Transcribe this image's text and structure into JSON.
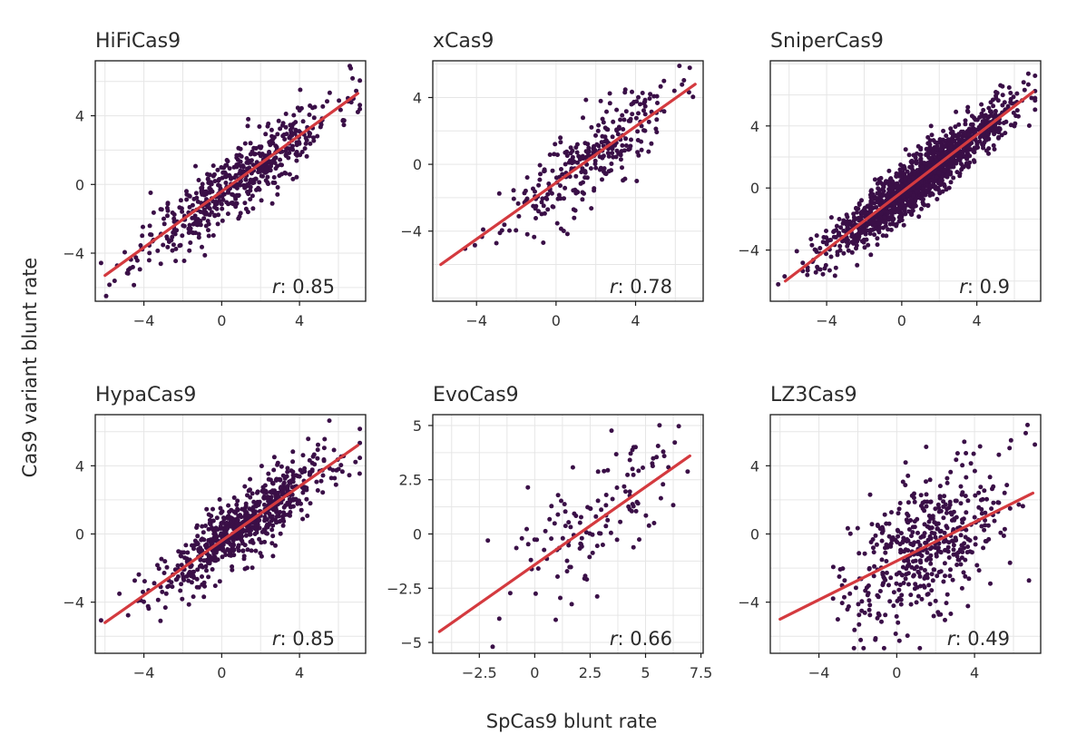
{
  "figure": {
    "xlabel": "SpCas9 blunt rate",
    "ylabel": "Cas9 variant blunt rate",
    "colors": {
      "point": "#3a0f47",
      "fit": "#d43a3f",
      "grid": "#e6e6e6",
      "frame": "#1a1a1a"
    }
  },
  "chart_data": [
    {
      "type": "scatter",
      "title": "HiFiCas9",
      "r_prefix": "r",
      "r_value": ": 0.85",
      "xlim": [
        -6.5,
        7.4
      ],
      "ylim": [
        -6.8,
        7.2
      ],
      "xticks": [
        -4,
        0,
        4
      ],
      "xtick_labels": [
        "−4",
        "0",
        "4"
      ],
      "yticks": [
        -4,
        0,
        4
      ],
      "ytick_labels": [
        "−4",
        "0",
        "4"
      ],
      "fit": {
        "x": [
          -6.0,
          7.0
        ],
        "y": [
          -5.3,
          5.3
        ]
      },
      "n_points": 560,
      "seed": 11,
      "x_mean": 0.8,
      "x_sd": 2.5,
      "noise_sd": 1.0,
      "slope": 0.815,
      "intercept": -0.41,
      "grid": true
    },
    {
      "type": "scatter",
      "title": "xCas9",
      "r_prefix": "r",
      "r_value": ": 0.78",
      "xlim": [
        -6.2,
        7.4
      ],
      "ylim": [
        -8.2,
        6.2
      ],
      "xticks": [
        -4,
        0,
        4
      ],
      "xtick_labels": [
        "−4",
        "0",
        "4"
      ],
      "yticks": [
        -4,
        0,
        4
      ],
      "ytick_labels": [
        "−4",
        "0",
        "4"
      ],
      "fit": {
        "x": [
          -5.8,
          7.0
        ],
        "y": [
          -6.0,
          4.8
        ]
      },
      "n_points": 300,
      "seed": 23,
      "x_mean": 1.6,
      "x_sd": 2.1,
      "noise_sd": 1.2,
      "slope": 0.84,
      "intercept": -1.1,
      "grid": true
    },
    {
      "type": "scatter",
      "title": "SniperCas9",
      "r_prefix": "r",
      "r_value": ": 0.9",
      "xlim": [
        -7.0,
        7.4
      ],
      "ylim": [
        -7.3,
        8.2
      ],
      "xticks": [
        -4,
        0,
        4
      ],
      "xtick_labels": [
        "−4",
        "0",
        "4"
      ],
      "yticks": [
        -4,
        0,
        4
      ],
      "ytick_labels": [
        "−4",
        "0",
        "4"
      ],
      "fit": {
        "x": [
          -6.2,
          7.0
        ],
        "y": [
          -6.0,
          6.2
        ]
      },
      "n_points": 1500,
      "seed": 37,
      "x_mean": 0.9,
      "x_sd": 2.3,
      "noise_sd": 0.85,
      "slope": 0.92,
      "intercept": -0.3,
      "grid": true
    },
    {
      "type": "scatter",
      "title": "HypaCas9",
      "r_prefix": "r",
      "r_value": ": 0.85",
      "xlim": [
        -6.5,
        7.4
      ],
      "ylim": [
        -7.0,
        7.0
      ],
      "xticks": [
        -4,
        0,
        4
      ],
      "xtick_labels": [
        "−4",
        "0",
        "4"
      ],
      "yticks": [
        -4,
        0,
        4
      ],
      "ytick_labels": [
        "−4",
        "0",
        "4"
      ],
      "fit": {
        "x": [
          -6.0,
          7.0
        ],
        "y": [
          -5.2,
          5.2
        ]
      },
      "n_points": 720,
      "seed": 53,
      "x_mean": 1.3,
      "x_sd": 2.3,
      "noise_sd": 1.0,
      "slope": 0.8,
      "intercept": -0.4,
      "grid": true
    },
    {
      "type": "scatter",
      "title": "EvoCas9",
      "r_prefix": "r",
      "r_value": ": 0.66",
      "xlim": [
        -4.6,
        7.6
      ],
      "ylim": [
        -5.5,
        5.5
      ],
      "xticks": [
        -2.5,
        0,
        2.5,
        5,
        7.5
      ],
      "xtick_labels": [
        "−2.5",
        "0",
        "2.5",
        "5",
        "7.5"
      ],
      "yticks": [
        -5,
        -2.5,
        0,
        2.5,
        5
      ],
      "ytick_labels": [
        "−5",
        "−2.5",
        "0",
        "2.5",
        "5"
      ],
      "fit": {
        "x": [
          -4.3,
          7.0
        ],
        "y": [
          -4.5,
          3.6
        ]
      },
      "n_points": 130,
      "seed": 71,
      "x_mean": 2.8,
      "x_sd": 2.2,
      "noise_sd": 1.6,
      "slope": 0.72,
      "intercept": -1.4,
      "grid": true
    },
    {
      "type": "scatter",
      "title": "LZ3Cas9",
      "r_prefix": "r",
      "r_value": ": 0.49",
      "xlim": [
        -6.5,
        7.4
      ],
      "ylim": [
        -7.0,
        7.0
      ],
      "xticks": [
        -4,
        0,
        4
      ],
      "xtick_labels": [
        "−4",
        "0",
        "4"
      ],
      "yticks": [
        -4,
        0,
        4
      ],
      "ytick_labels": [
        "−4",
        "0",
        "4"
      ],
      "fit": {
        "x": [
          -6.0,
          7.0
        ],
        "y": [
          -5.0,
          2.4
        ]
      },
      "n_points": 480,
      "seed": 97,
      "x_mean": 1.4,
      "x_sd": 2.2,
      "noise_sd": 2.1,
      "slope": 0.57,
      "intercept": -1.6,
      "grid": true
    }
  ]
}
